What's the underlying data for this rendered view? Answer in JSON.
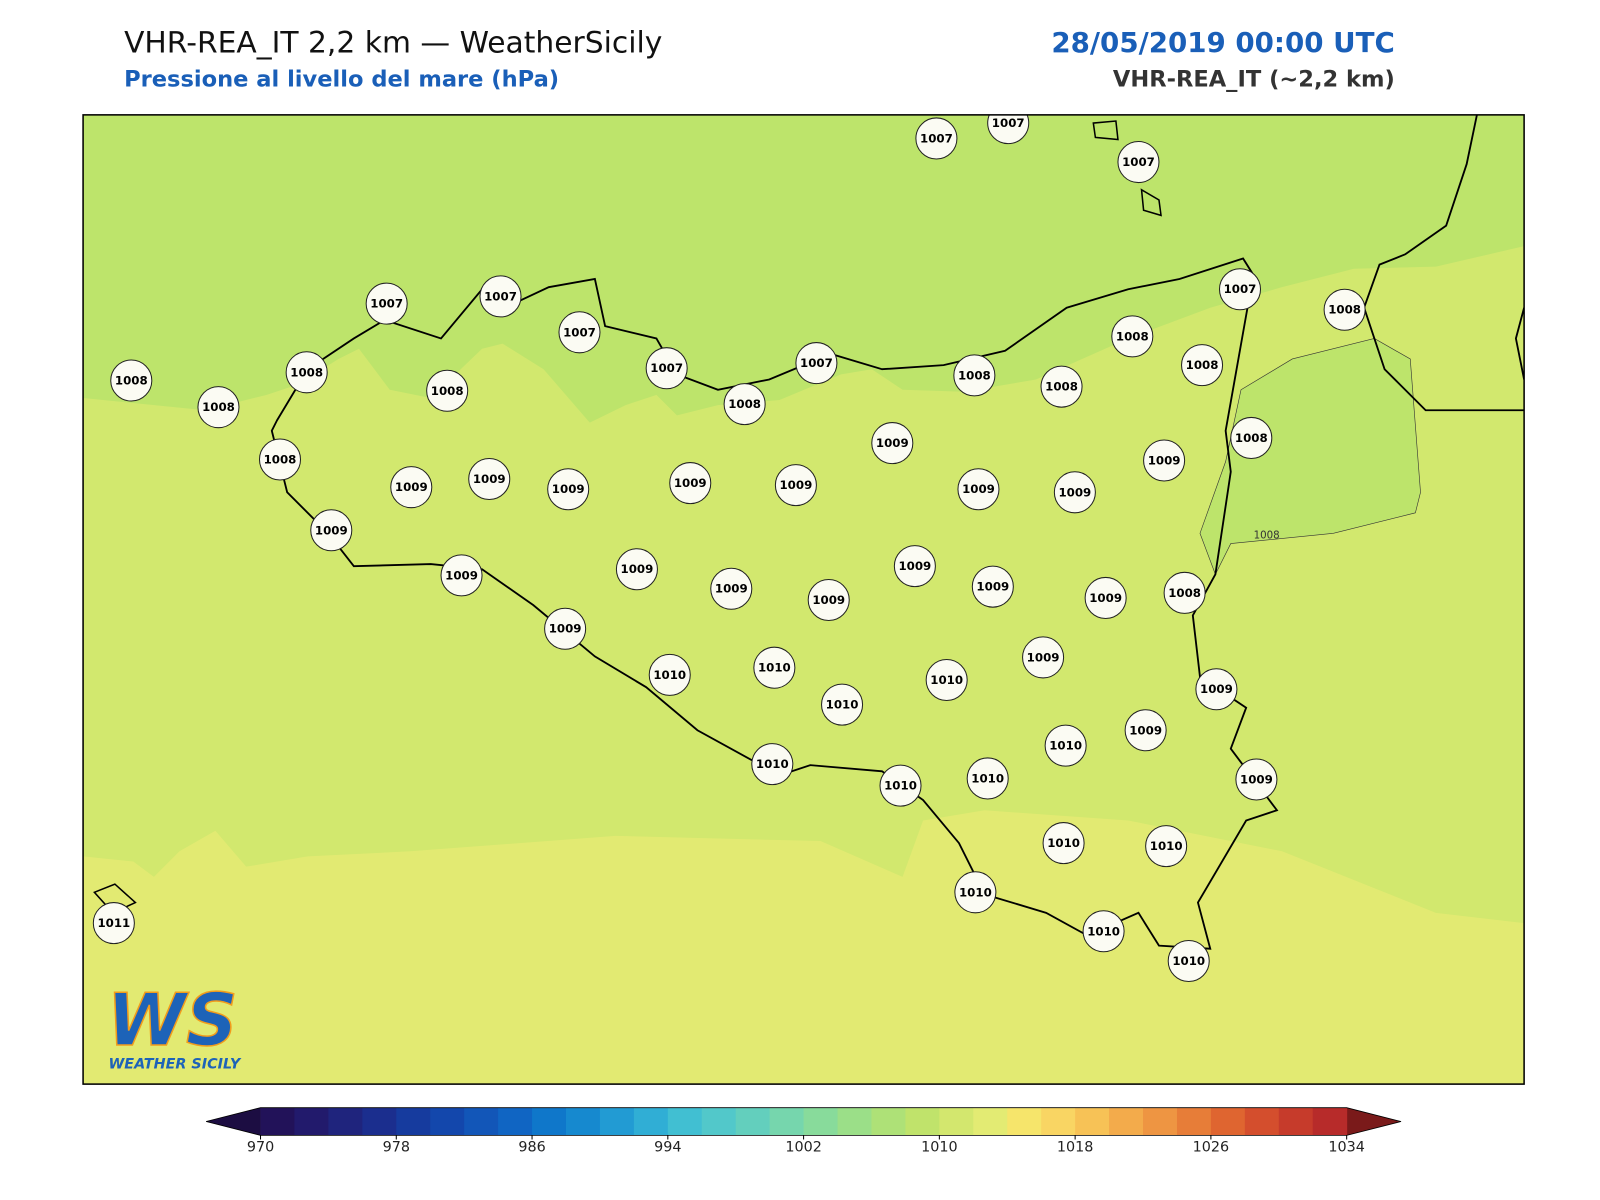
{
  "header": {
    "title": "VHR-REA_IT 2,2 km — WeatherSicily",
    "subtitle": "Pressione al livello del mare (hPa)",
    "datetime": "28/05/2019 00:00 UTC",
    "model": "VHR-REA_IT (~2,2 km)"
  },
  "stations": [
    1007,
    1007,
    1007,
    1007,
    1008,
    1007,
    1007,
    1007,
    1007,
    1007,
    1008,
    1008,
    1008,
    1008,
    1008,
    1008,
    1008,
    1008,
    1008,
    1008,
    1008,
    1009,
    1009,
    1009,
    1009,
    1009,
    1009,
    1009,
    1009,
    1009,
    1009,
    1009,
    1009,
    1009,
    1009,
    1009,
    1009,
    1009,
    1008,
    1009,
    1009,
    1010,
    1010,
    1010,
    1010,
    1009,
    1010,
    1009,
    1010,
    1010,
    1010,
    1009,
    1010,
    1010,
    1010,
    1010,
    1010,
    1011
  ],
  "contour_label": "1008",
  "logo": {
    "mark": "WS",
    "text": "WEATHER SICILY"
  },
  "colorbar": {
    "range": [
      970,
      1034
    ],
    "ticks": [
      970,
      978,
      986,
      994,
      1002,
      1010,
      1018,
      1026,
      1034
    ],
    "under": "#1c0d42",
    "over": "#7a1a1a",
    "colors": [
      "#221259",
      "#221a6c",
      "#1f247d",
      "#1b2e8e",
      "#163b9e",
      "#1347ac",
      "#1256b8",
      "#1065c3",
      "#0f77ca",
      "#1689cf",
      "#229bd3",
      "#30aed5",
      "#41bfd2",
      "#52c8ca",
      "#63cfbd",
      "#76d6ad",
      "#88db9b",
      "#9bdf88",
      "#aee177",
      "#c0e36b",
      "#d3e76e",
      "#e3eb73",
      "#f6e56b",
      "#f9d563",
      "#f7c256",
      "#f3ab4b",
      "#ee9542",
      "#e77d38",
      "#df6530",
      "#d44e2d",
      "#c63b2b",
      "#b72b2a"
    ]
  }
}
